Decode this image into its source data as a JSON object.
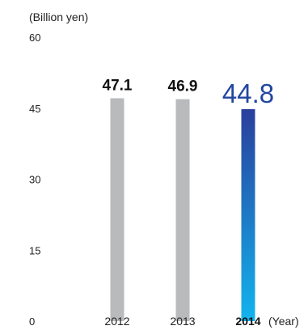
{
  "chart_data": {
    "type": "bar",
    "unit_label": "(Billion yen)",
    "x_unit_label": "(Year)",
    "categories": [
      "2012",
      "2013",
      "2014"
    ],
    "values": [
      47.1,
      46.9,
      44.8
    ],
    "data_labels": [
      "47.1",
      "46.9",
      "44.8"
    ],
    "highlight_index": 2,
    "ylim": [
      0,
      60
    ],
    "yticks": [
      0,
      15,
      30,
      45,
      60
    ],
    "grid": false,
    "colors": {
      "bar": "#b8babc",
      "highlight_top": "#2a3f9c",
      "highlight_bottom": "#12b4ee",
      "highlight_label": "#2346a0"
    }
  }
}
